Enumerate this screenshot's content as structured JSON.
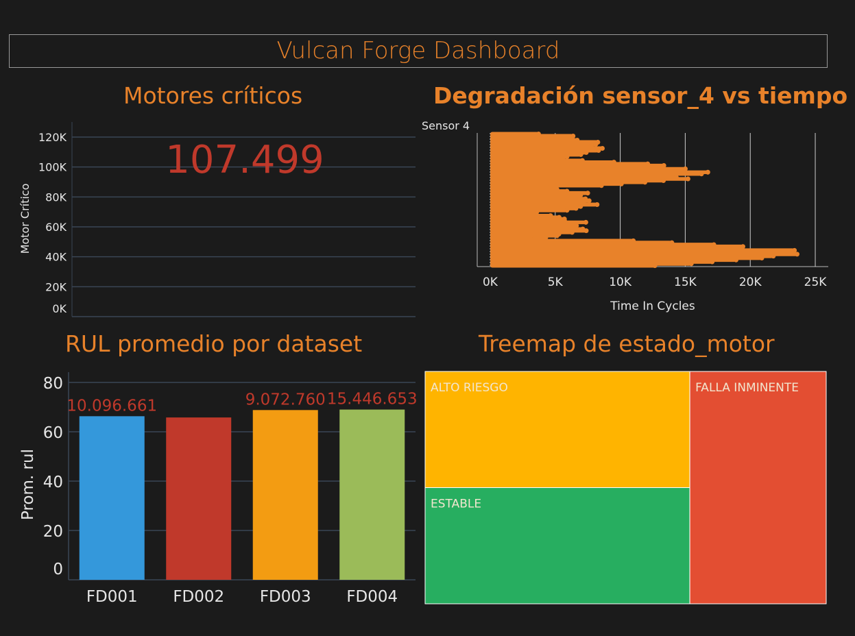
{
  "dashboard": {
    "title": "Vulcan Forge Dashboard"
  },
  "colors": {
    "background": "#1b1b1b",
    "accent": "#e8822a",
    "kpi": "#c0392b",
    "grid": "#3a4656",
    "axis_text": "#e6e6e6"
  },
  "chart_data": [
    {
      "type": "bar",
      "panel": "kpi",
      "title": "Motores críticos",
      "kpi_value": "107.499",
      "ylabel": "Motor Crítico",
      "ylim": [
        0,
        120000
      ],
      "yticks": [
        {
          "value": 0,
          "label": "0K"
        },
        {
          "value": 20000,
          "label": "20K"
        },
        {
          "value": 40000,
          "label": "40K"
        },
        {
          "value": 60000,
          "label": "60K"
        },
        {
          "value": 80000,
          "label": "80K"
        },
        {
          "value": 100000,
          "label": "100K"
        },
        {
          "value": 120000,
          "label": "120K"
        }
      ]
    },
    {
      "type": "scatter",
      "panel": "degradation",
      "title": "Degradación sensor_4 vs tiempo",
      "xlabel": "Time In Cycles",
      "ylabel": "Sensor 4",
      "xlim": [
        -1000,
        26000
      ],
      "xticks": [
        {
          "value": 0,
          "label": "0K"
        },
        {
          "value": 5000,
          "label": "5K"
        },
        {
          "value": 10000,
          "label": "10K"
        },
        {
          "value": 15000,
          "label": "15K"
        },
        {
          "value": 20000,
          "label": "20K"
        },
        {
          "value": 25000,
          "label": "25K"
        }
      ],
      "bands": [
        {
          "max_x": 9300,
          "rows": 13
        },
        {
          "max_x": 17100,
          "rows": 16
        },
        {
          "max_x": 8900,
          "rows": 14
        },
        {
          "max_x": 7900,
          "rows": 16
        },
        {
          "max_x": 24500,
          "rows": 14
        }
      ],
      "color": "#e8822a"
    },
    {
      "type": "bar",
      "panel": "rul",
      "title": "RUL promedio por dataset",
      "categories": [
        "FD001",
        "FD002",
        "FD003",
        "FD004"
      ],
      "values": [
        66.3,
        65.8,
        68.8,
        69.0
      ],
      "data_labels": [
        "10.096.661",
        "",
        "9.072.760",
        "15.446.653"
      ],
      "colors": [
        "#3498db",
        "#c0392b",
        "#f39c12",
        "#9bbb59"
      ],
      "ylabel": "Prom. rul",
      "ylim": [
        0,
        80
      ],
      "yticks": [
        {
          "value": 0,
          "label": "0"
        },
        {
          "value": 20,
          "label": "20"
        },
        {
          "value": 40,
          "label": "40"
        },
        {
          "value": 60,
          "label": "60"
        },
        {
          "value": 80,
          "label": "80"
        }
      ]
    },
    {
      "type": "treemap",
      "panel": "treemap",
      "title": "Treemap de estado_motor",
      "tiles": [
        {
          "label": "ALTO RIESGO",
          "value": 33,
          "color": "#ffb400"
        },
        {
          "label": "ESTABLE",
          "value": 33,
          "color": "#27ae60"
        },
        {
          "label": "FALLA INMINENTE",
          "value": 34,
          "color": "#e34e32"
        }
      ]
    }
  ]
}
